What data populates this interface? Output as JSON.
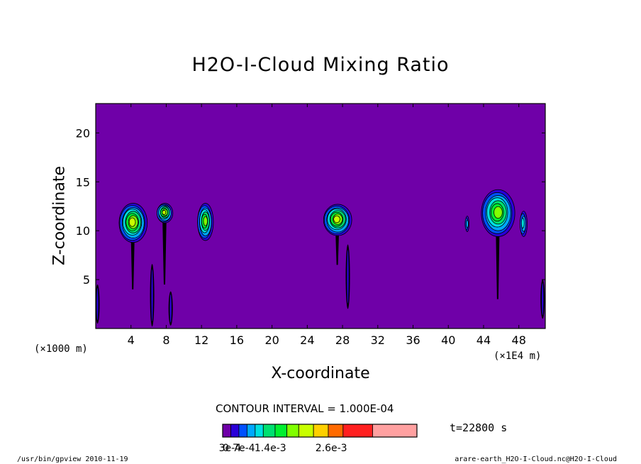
{
  "chart_data": {
    "type": "heatmap",
    "title": "H2O-I-Cloud Mixing Ratio",
    "xlabel": "X-coordinate",
    "ylabel": "Z-coordinate",
    "x_unit_left": "(×1000 m)",
    "x_unit_right": "(×1E4 m)",
    "xlim": [
      0,
      51
    ],
    "ylim": [
      0,
      23
    ],
    "x_ticks": [
      4,
      8,
      12,
      16,
      20,
      24,
      28,
      32,
      36,
      40,
      44,
      48
    ],
    "y_ticks": [
      5,
      10,
      15,
      20
    ],
    "background_level_color": "#6f00a8",
    "levels": [
      {
        "color": "#6f00a8"
      },
      {
        "color": "#2a00d8"
      },
      {
        "color": "#0050ff"
      },
      {
        "color": "#00a8ff"
      },
      {
        "color": "#00e0e0"
      },
      {
        "color": "#00e070"
      },
      {
        "color": "#00f030"
      },
      {
        "color": "#80ff00"
      },
      {
        "color": "#c8ff00"
      },
      {
        "color": "#ffd000"
      },
      {
        "color": "#ff6a00"
      },
      {
        "color": "#ff2020"
      },
      {
        "color": "#ffa0a0"
      }
    ],
    "cloud_cells": [
      {
        "x": 4.2,
        "z": 10.8,
        "rx": 1.6,
        "rz": 2.0,
        "peak": 8,
        "stem_to": 4.0
      },
      {
        "x": 7.8,
        "z": 11.8,
        "rx": 0.9,
        "rz": 1.0,
        "peak": 8,
        "stem_to": 4.5
      },
      {
        "x": 12.4,
        "z": 10.9,
        "rx": 0.9,
        "rz": 1.9,
        "peak": 7,
        "stem_to": 9.0
      },
      {
        "x": 27.4,
        "z": 11.1,
        "rx": 1.6,
        "rz": 1.6,
        "peak": 8,
        "stem_to": 6.5
      },
      {
        "x": 45.6,
        "z": 11.8,
        "rx": 1.9,
        "rz": 2.4,
        "peak": 7,
        "stem_to": 3.0
      },
      {
        "x": 42.1,
        "z": 10.7,
        "rx": 0.2,
        "rz": 0.8,
        "peak": 3,
        "stem_to": 10.0
      },
      {
        "x": 48.5,
        "z": 10.7,
        "rx": 0.4,
        "rz": 1.3,
        "peak": 4,
        "stem_to": 10.0
      }
    ],
    "streaks": [
      {
        "x": 6.4,
        "z0": 0.2,
        "z1": 6.6
      },
      {
        "x": 28.6,
        "z0": 2.0,
        "z1": 8.6
      },
      {
        "x": 8.5,
        "z0": 0.3,
        "z1": 3.8
      },
      {
        "x": 0.2,
        "z0": 0.5,
        "z1": 4.5
      },
      {
        "x": 50.7,
        "z0": 1.0,
        "z1": 5.0
      }
    ],
    "contour_interval_text": "CONTOUR INTERVAL = 1.000E-04",
    "colorbar_labels": [
      {
        "text": "0",
        "at": 0
      },
      {
        "text": "3e-4",
        "at": 0.9
      },
      {
        "text": "7e-4",
        "at": 2.6
      },
      {
        "text": "1.4e-3",
        "at": 5.6
      },
      {
        "text": "2.6e-3",
        "at": 10.2
      }
    ],
    "time_text": "t=22800  s"
  },
  "footer": {
    "left": "/usr/bin/gpview  2010-11-19",
    "right": "arare-earth_H2O-I-Cloud.nc@H2O-I-Cloud"
  }
}
